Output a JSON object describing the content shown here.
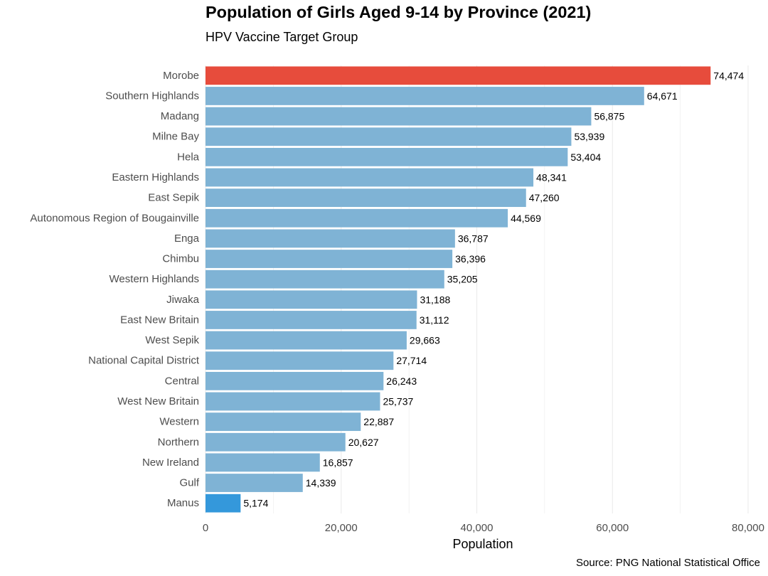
{
  "chart_data": {
    "type": "bar",
    "orientation": "horizontal",
    "title": "Population of Girls Aged 9-14 by Province (2021)",
    "subtitle": "HPV Vaccine Target Group",
    "xlabel": "Population",
    "ylabel": "",
    "caption": "Source: PNG National Statistical Office",
    "xlim": [
      0,
      80000
    ],
    "x_ticks": [
      0,
      20000,
      40000,
      60000,
      80000
    ],
    "x_tick_labels": [
      "0",
      "20,000",
      "40,000",
      "60,000",
      "80,000"
    ],
    "grid": "vertical",
    "legend": "none",
    "categories": [
      "Morobe",
      "Southern Highlands",
      "Madang",
      "Milne Bay",
      "Hela",
      "Eastern Highlands",
      "East Sepik",
      "Autonomous Region of Bougainville",
      "Enga",
      "Chimbu",
      "Western Highlands",
      "Jiwaka",
      "East New Britain",
      "West Sepik",
      "National Capital District",
      "Central",
      "West New Britain",
      "Western",
      "Northern",
      "New Ireland",
      "Gulf",
      "Manus"
    ],
    "values": [
      74474,
      64671,
      56875,
      53939,
      53404,
      48341,
      47260,
      44569,
      36787,
      36396,
      35205,
      31188,
      31112,
      29663,
      27714,
      26243,
      25737,
      22887,
      20627,
      16857,
      14339,
      5174
    ],
    "value_labels": [
      "74,474",
      "64,671",
      "56,875",
      "53,939",
      "53,404",
      "48,341",
      "47,260",
      "44,569",
      "36,787",
      "36,396",
      "35,205",
      "31,188",
      "31,112",
      "29,663",
      "27,714",
      "26,243",
      "25,737",
      "22,887",
      "20,627",
      "16,857",
      "14,339",
      "5,174"
    ],
    "colors": {
      "highest": "#e74c3c",
      "lowest": "#3498db",
      "default": "#7fb3d5",
      "grid": "#ebebeb"
    }
  }
}
